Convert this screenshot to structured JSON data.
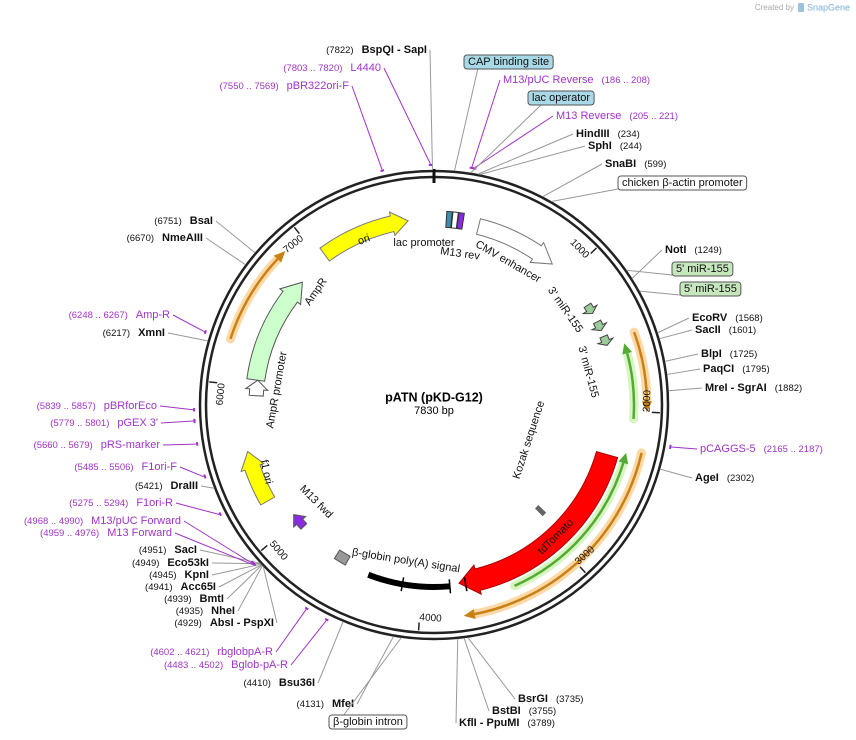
{
  "header": {
    "credit": "Created by",
    "brand": "SnapGene"
  },
  "plasmid": {
    "name": "pATN (pKD-G12)",
    "length": "7830 bp"
  },
  "ruler": [
    1000,
    2000,
    3000,
    4000,
    5000,
    6000,
    7000
  ],
  "sites": [
    {
      "name": "BspQI - SapI",
      "position": "(7822)"
    },
    {
      "name": "HindIII",
      "position": "(234)"
    },
    {
      "name": "SphI",
      "position": "(244)"
    },
    {
      "name": "SnaBI",
      "position": "(599)"
    },
    {
      "name": "NotI",
      "position": "(1249)"
    },
    {
      "name": "EcoRV",
      "position": "(1568)"
    },
    {
      "name": "SacII",
      "position": "(1601)"
    },
    {
      "name": "BlpI",
      "position": "(1725)"
    },
    {
      "name": "PaqCI",
      "position": "(1795)"
    },
    {
      "name": "MreI - SgrAI",
      "position": "(1882)"
    },
    {
      "name": "AgeI",
      "position": "(2302)"
    },
    {
      "name": "BsrGI",
      "position": "(3735)"
    },
    {
      "name": "BstBI",
      "position": "(3755)"
    },
    {
      "name": "KflI - PpuMI",
      "position": "(3789)"
    },
    {
      "name": "BsaI",
      "position": "(6751)"
    },
    {
      "name": "NmeAIII",
      "position": "(6670)"
    },
    {
      "name": "XmnI",
      "position": "(6217)"
    },
    {
      "name": "DraIII",
      "position": "(5421)"
    },
    {
      "name": "SacI",
      "position": "(4951)"
    },
    {
      "name": "Eco53kI",
      "position": "(4949)"
    },
    {
      "name": "KpnI",
      "position": "(4945)"
    },
    {
      "name": "Acc65I",
      "position": "(4941)"
    },
    {
      "name": "BmtI",
      "position": "(4939)"
    },
    {
      "name": "NheI",
      "position": "(4935)"
    },
    {
      "name": "AbsI - PspXI",
      "position": "(4929)"
    },
    {
      "name": "Bsu36I",
      "position": "(4410)"
    },
    {
      "name": "MfeI",
      "position": "(4131)"
    }
  ],
  "primers": [
    {
      "name": "L4440",
      "range": "(7803 .. 7820)"
    },
    {
      "name": "pBR322ori-F",
      "range": "(7550 .. 7569)"
    },
    {
      "name": "M13/pUC Reverse",
      "range": "(186 .. 208)"
    },
    {
      "name": "M13 Reverse",
      "range": "(205 .. 221)"
    },
    {
      "name": "pCAGGS-5",
      "range": "(2165 .. 2187)"
    },
    {
      "name": "Amp-R",
      "range": "(6248 .. 6267)"
    },
    {
      "name": "pBRforEco",
      "range": "(5839 .. 5857)"
    },
    {
      "name": "pGEX 3'",
      "range": "(5779 .. 5801)"
    },
    {
      "name": "pRS-marker",
      "range": "(5660 .. 5679)"
    },
    {
      "name": "F1ori-F",
      "range": "(5485 .. 5506)"
    },
    {
      "name": "F1ori-R",
      "range": "(5275 .. 5294)"
    },
    {
      "name": "M13/pUC Forward",
      "range": "(4968 .. 4990)"
    },
    {
      "name": "M13 Forward",
      "range": "(4959 .. 4976)"
    },
    {
      "name": "rbglobpA-R",
      "range": "(4602 .. 4621)"
    },
    {
      "name": "Bglob-pA-R",
      "range": "(4483 .. 4502)"
    }
  ],
  "boxed_features": [
    "CAP binding site",
    "lac operator",
    "chicken β-actin promoter",
    "5' miR-155",
    "5' miR-155",
    "β-globin intron"
  ],
  "feature_labels": [
    "lac promoter",
    "M13 rev",
    "CMV enhancer",
    "3' miR-155",
    "3' miR-155",
    "Kozak sequence",
    "tdTomato",
    "β-globin poly(A) signal",
    "M13 fwd",
    "f1 ori",
    "AmpR promoter",
    "AmpR",
    "ori"
  ]
}
